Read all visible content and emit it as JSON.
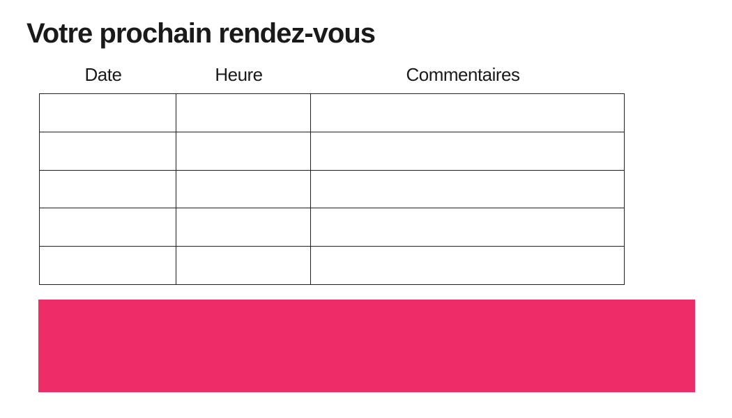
{
  "page": {
    "title": "Votre prochain rendez-vous",
    "background_color": "#ffffff",
    "text_color": "#1a1a1a",
    "border_color": "#1f1f1f"
  },
  "appointments_table": {
    "column_headers": [
      "Date",
      "Heure",
      "Commentaires"
    ],
    "rows": [
      [
        "",
        "",
        ""
      ],
      [
        "",
        "",
        ""
      ],
      [
        "",
        "",
        ""
      ],
      [
        "",
        "",
        ""
      ],
      [
        "",
        "",
        ""
      ]
    ]
  },
  "banner": {
    "label": "",
    "color": "#EE2C67"
  }
}
